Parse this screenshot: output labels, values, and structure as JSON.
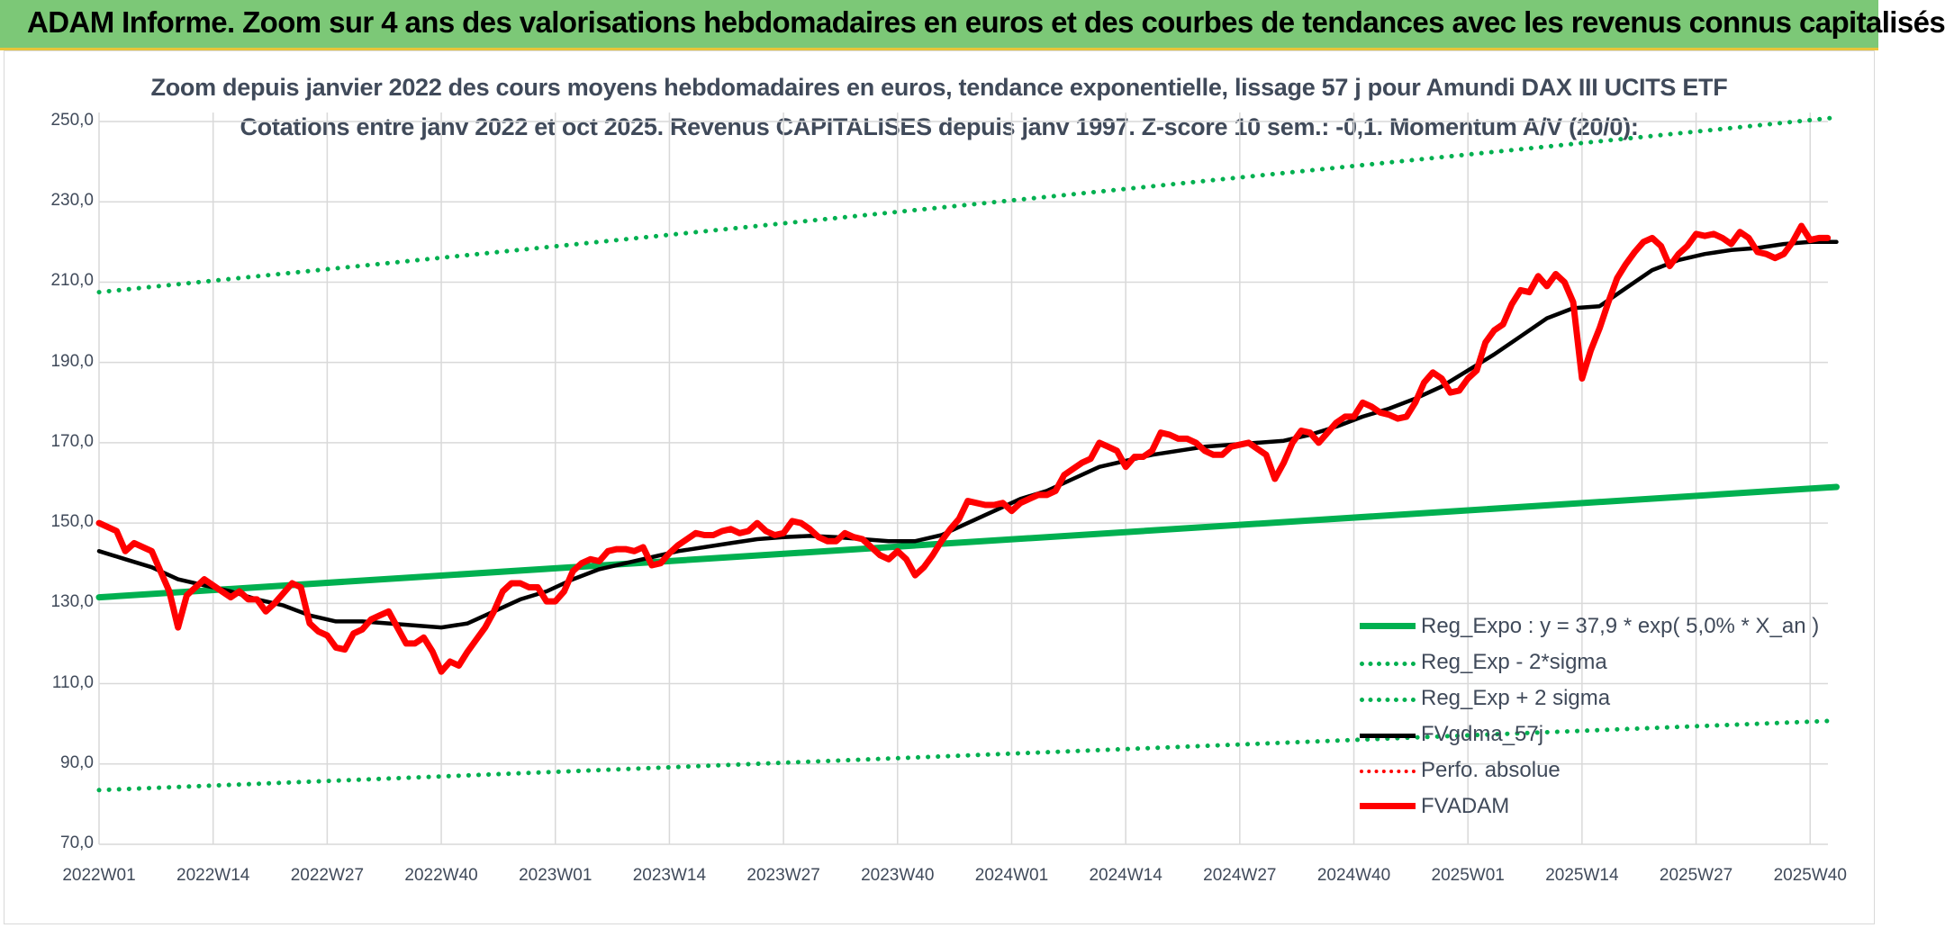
{
  "banner": {
    "title": "ADAM Informe. Zoom sur 4 ans des valorisations hebdomadaires en euros et des courbes de tendances avec les revenus connus capitalisés"
  },
  "colors": {
    "banner_bg": "#7cc877",
    "regression": "#00b050",
    "smoothed": "#000000",
    "price": "#ff0000",
    "grid": "#d9d9d9",
    "text": "#404a5a"
  },
  "chart_data": {
    "type": "line",
    "title_line1": "Zoom depuis janvier 2022 des cours moyens hebdomadaires en euros, tendance exponentielle, lissage 57 j pour Amundi DAX III UCITS ETF",
    "title_line2": "Cotations entre janv 2022 et oct 2025. Revenus CAPITALISES depuis janv 1997. Z-score 10 sem.: -0,1. Momentum A/V (20/0):",
    "ylim": [
      70,
      250
    ],
    "yticks": [
      "70,0",
      "90,0",
      "110,0",
      "130,0",
      "150,0",
      "170,0",
      "190,0",
      "210,0",
      "230,0",
      "250,0"
    ],
    "xlim": [
      0,
      196
    ],
    "xticks": [
      {
        "x": 0,
        "label": "2022W01"
      },
      {
        "x": 13,
        "label": "2022W14"
      },
      {
        "x": 26,
        "label": "2022W27"
      },
      {
        "x": 39,
        "label": "2022W40"
      },
      {
        "x": 52,
        "label": "2023W01"
      },
      {
        "x": 65,
        "label": "2023W14"
      },
      {
        "x": 78,
        "label": "2023W27"
      },
      {
        "x": 91,
        "label": "2023W40"
      },
      {
        "x": 104,
        "label": "2024W01"
      },
      {
        "x": 117,
        "label": "2024W14"
      },
      {
        "x": 130,
        "label": "2024W27"
      },
      {
        "x": 143,
        "label": "2024W40"
      },
      {
        "x": 156,
        "label": "2025W01"
      },
      {
        "x": 169,
        "label": "2025W14"
      },
      {
        "x": 182,
        "label": "2025W27"
      },
      {
        "x": 195,
        "label": "2025W40"
      }
    ],
    "legend_position": "bottom-right",
    "series": [
      {
        "name": "Reg_Expo : y = 37,9 * exp( 5,0% *  X_an )",
        "style": "solid-thick",
        "color": "#00b050",
        "points": [
          [
            0,
            131.5
          ],
          [
            198,
            159.0
          ]
        ]
      },
      {
        "name": "Reg_Exp - 2*sigma",
        "style": "dotted",
        "color": "#00b050",
        "points": [
          [
            0,
            83.5
          ],
          [
            198,
            100.8
          ]
        ]
      },
      {
        "name": "Reg_Exp + 2 sigma",
        "style": "dotted",
        "color": "#00b050",
        "points": [
          [
            0,
            207.5
          ],
          [
            198,
            251.0
          ]
        ]
      },
      {
        "name": "FVgdma_57j",
        "style": "solid",
        "color": "#000000",
        "points": [
          [
            0,
            143
          ],
          [
            3,
            141
          ],
          [
            6,
            139
          ],
          [
            9,
            136
          ],
          [
            12,
            134.5
          ],
          [
            15,
            133
          ],
          [
            18,
            131
          ],
          [
            21,
            129.5
          ],
          [
            24,
            127
          ],
          [
            27,
            125.5
          ],
          [
            30,
            125.5
          ],
          [
            33,
            125
          ],
          [
            36,
            124.5
          ],
          [
            39,
            124
          ],
          [
            42,
            125
          ],
          [
            45,
            128
          ],
          [
            48,
            131
          ],
          [
            51,
            133
          ],
          [
            54,
            136
          ],
          [
            57,
            138.5
          ],
          [
            60,
            140
          ],
          [
            63,
            141.5
          ],
          [
            66,
            143
          ],
          [
            69,
            144
          ],
          [
            72,
            145
          ],
          [
            75,
            146
          ],
          [
            78,
            146.5
          ],
          [
            81,
            146.8
          ],
          [
            84,
            146.5
          ],
          [
            87,
            146
          ],
          [
            90,
            145.5
          ],
          [
            93,
            145.5
          ],
          [
            96,
            147
          ],
          [
            99,
            150
          ],
          [
            102,
            153
          ],
          [
            105,
            156
          ],
          [
            108,
            158
          ],
          [
            111,
            161
          ],
          [
            114,
            164
          ],
          [
            117,
            165.5
          ],
          [
            120,
            167
          ],
          [
            123,
            168
          ],
          [
            126,
            169
          ],
          [
            129,
            169.5
          ],
          [
            132,
            170
          ],
          [
            135,
            170.5
          ],
          [
            138,
            172
          ],
          [
            141,
            174
          ],
          [
            144,
            176.5
          ],
          [
            147,
            178.5
          ],
          [
            150,
            181
          ],
          [
            153,
            184
          ],
          [
            156,
            188
          ],
          [
            159,
            192
          ],
          [
            162,
            196.5
          ],
          [
            165,
            201
          ],
          [
            168,
            203.5
          ],
          [
            171,
            204
          ],
          [
            174,
            208.5
          ],
          [
            177,
            213
          ],
          [
            180,
            215.5
          ],
          [
            183,
            217
          ],
          [
            186,
            218
          ],
          [
            189,
            218.5
          ],
          [
            192,
            219.5
          ],
          [
            195,
            220
          ],
          [
            198,
            220
          ]
        ]
      },
      {
        "name": "Perfo. absolue",
        "style": "dotted",
        "color": "#ff0000",
        "points": []
      },
      {
        "name": "FVADAM",
        "style": "solid-thick",
        "color": "#ff0000",
        "points": [
          [
            0,
            150
          ],
          [
            2,
            148
          ],
          [
            3,
            143
          ],
          [
            4,
            145
          ],
          [
            6,
            143
          ],
          [
            8,
            133
          ],
          [
            9,
            124
          ],
          [
            10,
            132
          ],
          [
            12,
            136
          ],
          [
            14,
            133
          ],
          [
            15,
            131.5
          ],
          [
            16,
            133
          ],
          [
            17,
            131
          ],
          [
            18,
            131
          ],
          [
            19,
            128
          ],
          [
            20,
            130
          ],
          [
            22,
            135
          ],
          [
            23,
            134
          ],
          [
            24,
            125
          ],
          [
            25,
            123
          ],
          [
            26,
            122
          ],
          [
            27,
            119
          ],
          [
            28,
            118.5
          ],
          [
            29,
            122.5
          ],
          [
            30,
            123.5
          ],
          [
            31,
            126
          ],
          [
            32,
            127
          ],
          [
            33,
            128
          ],
          [
            34,
            124
          ],
          [
            35,
            120
          ],
          [
            36,
            120
          ],
          [
            37,
            121.5
          ],
          [
            38,
            118
          ],
          [
            39,
            113
          ],
          [
            40,
            115.5
          ],
          [
            41,
            114.5
          ],
          [
            42,
            118
          ],
          [
            43,
            121
          ],
          [
            44,
            124
          ],
          [
            45,
            128
          ],
          [
            46,
            133
          ],
          [
            47,
            135
          ],
          [
            48,
            135
          ],
          [
            49,
            134
          ],
          [
            50,
            134
          ],
          [
            51,
            130.5
          ],
          [
            52,
            130.5
          ],
          [
            53,
            133
          ],
          [
            54,
            138
          ],
          [
            55,
            140
          ],
          [
            56,
            141
          ],
          [
            57,
            140.5
          ],
          [
            58,
            143
          ],
          [
            59,
            143.5
          ],
          [
            60,
            143.5
          ],
          [
            61,
            143
          ],
          [
            62,
            144
          ],
          [
            63,
            139.5
          ],
          [
            64,
            140
          ],
          [
            65,
            142.5
          ],
          [
            66,
            144.5
          ],
          [
            67,
            146
          ],
          [
            68,
            147.5
          ],
          [
            69,
            147
          ],
          [
            70,
            147
          ],
          [
            71,
            148
          ],
          [
            72,
            148.5
          ],
          [
            73,
            147.5
          ],
          [
            74,
            148
          ],
          [
            75,
            150
          ],
          [
            76,
            148
          ],
          [
            77,
            147
          ],
          [
            78,
            147.5
          ],
          [
            79,
            150.5
          ],
          [
            80,
            150
          ],
          [
            81,
            148.5
          ],
          [
            82,
            146.5
          ],
          [
            83,
            145.5
          ],
          [
            84,
            145.5
          ],
          [
            85,
            147.5
          ],
          [
            86,
            146.5
          ],
          [
            87,
            146
          ],
          [
            88,
            144
          ],
          [
            89,
            142
          ],
          [
            90,
            141
          ],
          [
            91,
            143
          ],
          [
            92,
            141
          ],
          [
            93,
            137
          ],
          [
            94,
            139
          ],
          [
            95,
            142
          ],
          [
            96,
            145.5
          ],
          [
            97,
            148.5
          ],
          [
            98,
            151
          ],
          [
            99,
            155.5
          ],
          [
            100,
            155
          ],
          [
            101,
            154.5
          ],
          [
            102,
            154.5
          ],
          [
            103,
            155
          ],
          [
            104,
            153
          ],
          [
            105,
            155
          ],
          [
            106,
            156
          ],
          [
            107,
            157
          ],
          [
            108,
            157
          ],
          [
            109,
            158
          ],
          [
            110,
            162
          ],
          [
            111,
            163.5
          ],
          [
            112,
            165
          ],
          [
            113,
            166
          ],
          [
            114,
            170
          ],
          [
            115,
            169
          ],
          [
            116,
            168
          ],
          [
            117,
            164
          ],
          [
            118,
            166.5
          ],
          [
            119,
            166.5
          ],
          [
            120,
            168
          ],
          [
            121,
            172.5
          ],
          [
            122,
            172
          ],
          [
            123,
            171
          ],
          [
            124,
            171
          ],
          [
            125,
            170
          ],
          [
            126,
            168
          ],
          [
            127,
            167
          ],
          [
            128,
            167
          ],
          [
            129,
            169
          ],
          [
            130,
            169.5
          ],
          [
            131,
            170
          ],
          [
            132,
            168.5
          ],
          [
            133,
            167
          ],
          [
            134,
            161
          ],
          [
            135,
            165
          ],
          [
            136,
            170
          ],
          [
            137,
            173
          ],
          [
            138,
            172.5
          ],
          [
            139,
            170
          ],
          [
            140,
            172.5
          ],
          [
            141,
            175
          ],
          [
            142,
            176.5
          ],
          [
            143,
            176.5
          ],
          [
            144,
            180
          ],
          [
            145,
            179
          ],
          [
            146,
            177.5
          ],
          [
            147,
            177
          ],
          [
            148,
            176
          ],
          [
            149,
            176.5
          ],
          [
            150,
            180
          ],
          [
            151,
            185
          ],
          [
            152,
            187.5
          ],
          [
            153,
            186
          ],
          [
            154,
            182.5
          ],
          [
            155,
            183
          ],
          [
            156,
            186
          ],
          [
            157,
            188
          ],
          [
            158,
            195
          ],
          [
            159,
            198
          ],
          [
            160,
            199.5
          ],
          [
            161,
            204.5
          ],
          [
            162,
            208
          ],
          [
            163,
            207.5
          ],
          [
            164,
            211.5
          ],
          [
            165,
            209
          ],
          [
            166,
            212
          ],
          [
            167,
            210
          ],
          [
            168,
            205
          ],
          [
            169,
            186
          ],
          [
            170,
            193
          ],
          [
            171,
            198.5
          ],
          [
            172,
            205
          ],
          [
            173,
            211
          ],
          [
            174,
            214.5
          ],
          [
            175,
            217.5
          ],
          [
            176,
            220
          ],
          [
            177,
            221
          ],
          [
            178,
            219
          ],
          [
            179,
            214
          ],
          [
            180,
            217
          ],
          [
            181,
            219
          ],
          [
            182,
            222
          ],
          [
            183,
            221.5
          ],
          [
            184,
            222
          ],
          [
            185,
            221
          ],
          [
            186,
            219.5
          ],
          [
            187,
            222.5
          ],
          [
            188,
            221
          ],
          [
            189,
            217.5
          ],
          [
            190,
            217
          ],
          [
            191,
            216
          ],
          [
            192,
            217
          ],
          [
            193,
            220
          ],
          [
            194,
            224
          ],
          [
            195,
            220.5
          ],
          [
            196,
            221
          ],
          [
            197,
            221
          ]
        ]
      }
    ]
  }
}
